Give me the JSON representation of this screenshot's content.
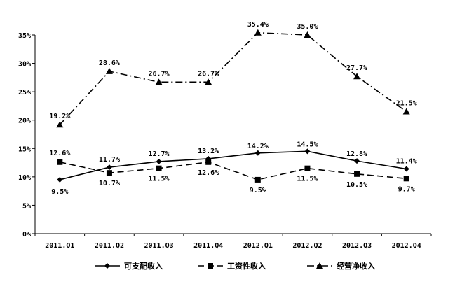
{
  "chart_data": {
    "type": "line",
    "categories": [
      "2011.Q1",
      "2011.Q2",
      "2011.Q3",
      "2011.Q4",
      "2012.Q1",
      "2012.Q2",
      "2012.Q3",
      "2012.Q4"
    ],
    "ylim": [
      0,
      35
    ],
    "yticks": [
      0,
      5,
      10,
      15,
      20,
      25,
      30,
      35
    ],
    "ytick_labels": [
      "0%",
      "5%",
      "10%",
      "15%",
      "20%",
      "25%",
      "30%",
      "35%"
    ],
    "grid": false,
    "legend_position": "bottom",
    "series": [
      {
        "name": "可支配收入",
        "marker": "diamond",
        "dash": "solid",
        "color": "#000000",
        "values": [
          9.5,
          11.7,
          12.7,
          13.2,
          14.2,
          14.5,
          12.8,
          11.4
        ],
        "labels": [
          "9.5%",
          "11.7%",
          "12.7%",
          "13.2%",
          "14.2%",
          "14.5%",
          "12.8%",
          "11.4%"
        ]
      },
      {
        "name": "工资性收入",
        "marker": "square",
        "dash": "dashed",
        "color": "#000000",
        "values": [
          12.6,
          10.7,
          11.5,
          12.6,
          9.5,
          11.5,
          10.5,
          9.7
        ],
        "labels": [
          "12.6%",
          "10.7%",
          "11.5%",
          "12.6%",
          "9.5%",
          "11.5%",
          "10.5%",
          "9.7%"
        ]
      },
      {
        "name": "经营净收入",
        "marker": "triangle",
        "dash": "dash-dot",
        "color": "#000000",
        "values": [
          19.2,
          28.6,
          26.7,
          26.7,
          35.4,
          35.0,
          27.7,
          21.5
        ],
        "labels": [
          "19.2%",
          "28.6%",
          "26.7%",
          "26.7%",
          "35.4%",
          "35.0%",
          "27.7%",
          "21.5%"
        ]
      }
    ]
  }
}
